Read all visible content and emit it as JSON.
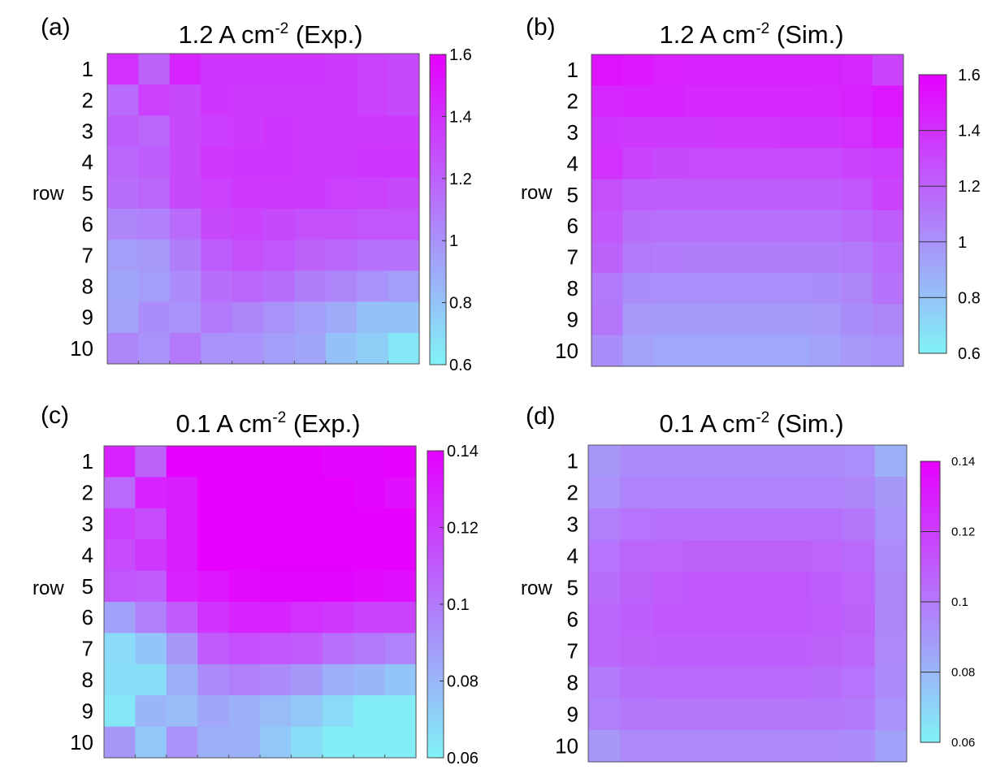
{
  "figure": {
    "row_axis_label": "row",
    "color_scale": {
      "low": "#80f3f6",
      "high": "#e600ff"
    }
  },
  "chart_data": [
    {
      "type": "heatmap",
      "panel_label": "(a)",
      "title": {
        "main": "1.2 A cm",
        "sup": "-2",
        "suffix": " (Exp.)"
      },
      "rows": [
        "1",
        "2",
        "3",
        "4",
        "5",
        "6",
        "7",
        "8",
        "9",
        "10"
      ],
      "columns": 10,
      "colorbar": {
        "min": 0.6,
        "max": 1.6,
        "ticks": [
          "0.6",
          "0.8",
          "1",
          "1.2",
          "1.4",
          "1.6"
        ]
      },
      "values": [
        [
          1.4,
          1.2,
          1.45,
          1.38,
          1.38,
          1.38,
          1.38,
          1.36,
          1.33,
          1.3
        ],
        [
          1.16,
          1.34,
          1.3,
          1.38,
          1.36,
          1.36,
          1.36,
          1.36,
          1.33,
          1.3
        ],
        [
          1.22,
          1.18,
          1.3,
          1.35,
          1.36,
          1.38,
          1.36,
          1.36,
          1.36,
          1.36
        ],
        [
          1.17,
          1.22,
          1.3,
          1.37,
          1.38,
          1.38,
          1.36,
          1.36,
          1.38,
          1.38
        ],
        [
          1.15,
          1.18,
          1.3,
          1.34,
          1.37,
          1.36,
          1.36,
          1.34,
          1.33,
          1.3
        ],
        [
          1.05,
          1.07,
          1.16,
          1.3,
          1.32,
          1.3,
          1.27,
          1.27,
          1.25,
          1.25
        ],
        [
          0.95,
          0.97,
          1.08,
          1.22,
          1.27,
          1.25,
          1.2,
          1.17,
          1.13,
          1.13
        ],
        [
          0.92,
          0.95,
          1.03,
          1.15,
          1.18,
          1.15,
          1.08,
          1.05,
          1.0,
          0.95
        ],
        [
          0.93,
          1.02,
          1.0,
          1.1,
          1.05,
          1.0,
          0.95,
          0.9,
          0.8,
          0.8
        ],
        [
          1.05,
          1.0,
          1.1,
          1.0,
          1.0,
          0.95,
          0.92,
          0.8,
          0.75,
          0.65
        ]
      ]
    },
    {
      "type": "heatmap",
      "panel_label": "(b)",
      "title": {
        "main": "1.2 A cm",
        "sup": "-2",
        "suffix": " (Sim.)"
      },
      "rows": [
        "1",
        "2",
        "3",
        "4",
        "5",
        "6",
        "7",
        "8",
        "9",
        "10"
      ],
      "columns": 10,
      "colorbar": {
        "min": 0.6,
        "max": 1.6,
        "ticks": [
          "0.6",
          "0.8",
          "1",
          "1.2",
          "1.4",
          "1.6"
        ]
      },
      "values": [
        [
          1.52,
          1.5,
          1.47,
          1.46,
          1.46,
          1.46,
          1.46,
          1.46,
          1.44,
          1.32
        ],
        [
          1.44,
          1.45,
          1.45,
          1.43,
          1.43,
          1.43,
          1.43,
          1.44,
          1.46,
          1.5
        ],
        [
          1.38,
          1.36,
          1.36,
          1.36,
          1.37,
          1.37,
          1.38,
          1.38,
          1.4,
          1.46
        ],
        [
          1.4,
          1.32,
          1.3,
          1.29,
          1.29,
          1.29,
          1.29,
          1.29,
          1.32,
          1.35
        ],
        [
          1.27,
          1.22,
          1.21,
          1.21,
          1.21,
          1.21,
          1.21,
          1.21,
          1.24,
          1.32
        ],
        [
          1.24,
          1.15,
          1.14,
          1.14,
          1.14,
          1.14,
          1.14,
          1.14,
          1.17,
          1.22
        ],
        [
          1.2,
          1.1,
          1.09,
          1.08,
          1.08,
          1.08,
          1.08,
          1.08,
          1.1,
          1.16
        ],
        [
          1.1,
          1.02,
          1.01,
          1.01,
          1.01,
          1.01,
          1.01,
          1.02,
          1.05,
          1.13
        ],
        [
          1.12,
          0.97,
          0.96,
          0.96,
          0.96,
          0.96,
          0.96,
          0.97,
          1.02,
          1.05
        ],
        [
          1.02,
          0.93,
          0.91,
          0.91,
          0.91,
          0.91,
          0.91,
          0.93,
          0.97,
          1.0
        ]
      ]
    },
    {
      "type": "heatmap",
      "panel_label": "(c)",
      "title": {
        "main": "0.1 A cm",
        "sup": "-2",
        "suffix": " (Exp.)"
      },
      "rows": [
        "1",
        "2",
        "3",
        "4",
        "5",
        "6",
        "7",
        "8",
        "9",
        "10"
      ],
      "columns": 10,
      "colorbar": {
        "min": 0.06,
        "max": 0.14,
        "ticks": [
          "0.06",
          "0.08",
          "0.1",
          "0.12",
          "0.14"
        ]
      },
      "values": [
        [
          0.128,
          0.108,
          0.14,
          0.14,
          0.14,
          0.14,
          0.14,
          0.138,
          0.138,
          0.14
        ],
        [
          0.105,
          0.128,
          0.13,
          0.14,
          0.14,
          0.14,
          0.14,
          0.14,
          0.138,
          0.135
        ],
        [
          0.12,
          0.115,
          0.13,
          0.14,
          0.14,
          0.14,
          0.14,
          0.14,
          0.14,
          0.14
        ],
        [
          0.115,
          0.122,
          0.13,
          0.14,
          0.14,
          0.14,
          0.14,
          0.14,
          0.14,
          0.14
        ],
        [
          0.112,
          0.11,
          0.128,
          0.132,
          0.137,
          0.138,
          0.138,
          0.138,
          0.136,
          0.135
        ],
        [
          0.087,
          0.098,
          0.11,
          0.123,
          0.128,
          0.128,
          0.124,
          0.122,
          0.118,
          0.118
        ],
        [
          0.068,
          0.075,
          0.09,
          0.11,
          0.114,
          0.112,
          0.11,
          0.103,
          0.1,
          0.097
        ],
        [
          0.067,
          0.067,
          0.082,
          0.094,
          0.098,
          0.094,
          0.09,
          0.083,
          0.08,
          0.075
        ],
        [
          0.064,
          0.08,
          0.078,
          0.085,
          0.082,
          0.078,
          0.074,
          0.068,
          0.062,
          0.062
        ],
        [
          0.09,
          0.074,
          0.092,
          0.082,
          0.082,
          0.074,
          0.067,
          0.062,
          0.062,
          0.062
        ]
      ]
    },
    {
      "type": "heatmap",
      "panel_label": "(d)",
      "title": {
        "main": "0.1 A cm",
        "sup": "-2",
        "suffix": " (Sim.)"
      },
      "rows": [
        "1",
        "2",
        "3",
        "4",
        "5",
        "6",
        "7",
        "8",
        "9",
        "10"
      ],
      "columns": 10,
      "colorbar": {
        "min": 0.06,
        "max": 0.14,
        "ticks": [
          "0.06",
          "0.08",
          "0.1",
          "0.12",
          "0.14"
        ]
      },
      "values": [
        [
          0.09,
          0.094,
          0.094,
          0.094,
          0.094,
          0.094,
          0.094,
          0.094,
          0.093,
          0.082
        ],
        [
          0.092,
          0.097,
          0.097,
          0.097,
          0.097,
          0.097,
          0.097,
          0.097,
          0.096,
          0.09
        ],
        [
          0.098,
          0.102,
          0.103,
          0.103,
          0.103,
          0.103,
          0.103,
          0.103,
          0.101,
          0.092
        ],
        [
          0.102,
          0.106,
          0.107,
          0.108,
          0.108,
          0.108,
          0.108,
          0.107,
          0.105,
          0.094
        ],
        [
          0.104,
          0.108,
          0.11,
          0.111,
          0.111,
          0.111,
          0.111,
          0.109,
          0.107,
          0.096
        ],
        [
          0.106,
          0.109,
          0.111,
          0.111,
          0.111,
          0.111,
          0.111,
          0.11,
          0.108,
          0.096
        ],
        [
          0.106,
          0.108,
          0.109,
          0.109,
          0.109,
          0.109,
          0.109,
          0.108,
          0.106,
          0.095
        ],
        [
          0.1,
          0.104,
          0.105,
          0.105,
          0.105,
          0.105,
          0.105,
          0.104,
          0.102,
          0.094
        ],
        [
          0.098,
          0.101,
          0.101,
          0.101,
          0.101,
          0.101,
          0.101,
          0.101,
          0.1,
          0.092
        ],
        [
          0.09,
          0.095,
          0.095,
          0.095,
          0.095,
          0.095,
          0.095,
          0.095,
          0.094,
          0.087
        ]
      ]
    }
  ]
}
